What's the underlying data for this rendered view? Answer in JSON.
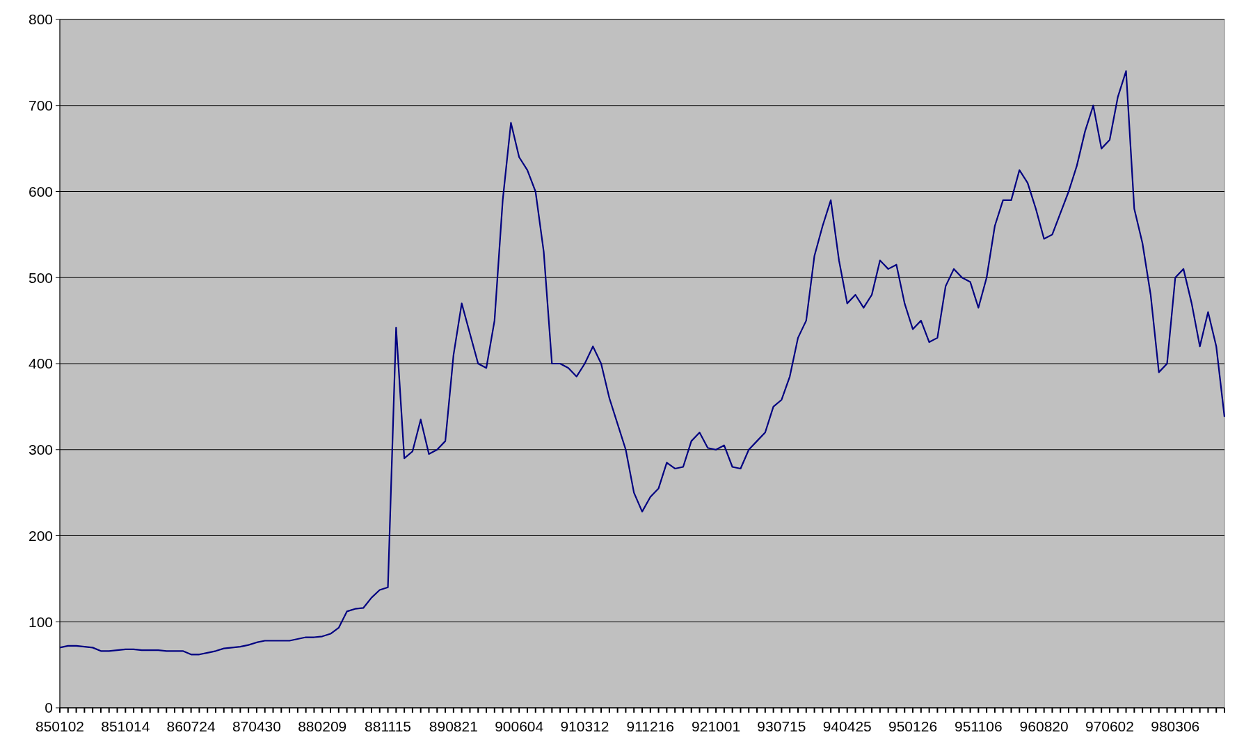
{
  "chart_data": {
    "type": "line",
    "categories": [
      "850102",
      null,
      null,
      null,
      null,
      null,
      null,
      null,
      "851014",
      null,
      null,
      null,
      null,
      null,
      null,
      null,
      "860724",
      null,
      null,
      null,
      null,
      null,
      null,
      null,
      "870430",
      null,
      null,
      null,
      null,
      null,
      null,
      null,
      "880209",
      null,
      null,
      null,
      null,
      null,
      null,
      null,
      "881115",
      null,
      null,
      null,
      null,
      null,
      null,
      null,
      "890821",
      null,
      null,
      null,
      null,
      null,
      null,
      null,
      "900604",
      null,
      null,
      null,
      null,
      null,
      null,
      null,
      "910312",
      null,
      null,
      null,
      null,
      null,
      null,
      null,
      "911216",
      null,
      null,
      null,
      null,
      null,
      null,
      null,
      "921001",
      null,
      null,
      null,
      null,
      null,
      null,
      null,
      "930715",
      null,
      null,
      null,
      null,
      null,
      null,
      null,
      "940425",
      null,
      null,
      null,
      null,
      null,
      null,
      null,
      "950126",
      null,
      null,
      null,
      null,
      null,
      null,
      null,
      "951106",
      null,
      null,
      null,
      null,
      null,
      null,
      null,
      "960820",
      null,
      null,
      null,
      null,
      null,
      null,
      null,
      "970602",
      null,
      null,
      null,
      null,
      null,
      null,
      null,
      "980306",
      null,
      null,
      null,
      null,
      null,
      null
    ],
    "series": [
      {
        "color": "#000080",
        "values": [
          70,
          72,
          72,
          71,
          70,
          66,
          66,
          67,
          68,
          68,
          67,
          67,
          67,
          66,
          66,
          66,
          62,
          62,
          64,
          66,
          69,
          70,
          71,
          73,
          76,
          78,
          78,
          78,
          78,
          80,
          82,
          82,
          83,
          86,
          93,
          112,
          115,
          116,
          128,
          137,
          140,
          442,
          290,
          298,
          335,
          295,
          300,
          310,
          410,
          470,
          435,
          400,
          395,
          450,
          590,
          680,
          640,
          625,
          600,
          530,
          400,
          400,
          395,
          385,
          400,
          420,
          400,
          360,
          330,
          300,
          250,
          228,
          245,
          255,
          285,
          278,
          280,
          310,
          320,
          302,
          300,
          305,
          280,
          278,
          300,
          310,
          320,
          350,
          358,
          385,
          430,
          450,
          525,
          560,
          590,
          520,
          470,
          480,
          465,
          480,
          520,
          510,
          515,
          470,
          440,
          450,
          425,
          430,
          490,
          510,
          500,
          495,
          465,
          500,
          560,
          590,
          590,
          625,
          610,
          580,
          545,
          550,
          575,
          600,
          630,
          670,
          700,
          650,
          660,
          710,
          740,
          580,
          540,
          480,
          390,
          400,
          500,
          510,
          470,
          420,
          460,
          420,
          338
        ]
      }
    ],
    "ylim": [
      0,
      800
    ],
    "yticks": [
      0,
      100,
      200,
      300,
      400,
      500,
      600,
      700,
      800
    ],
    "grid": "y",
    "marker": "none",
    "line_style": "solid"
  }
}
